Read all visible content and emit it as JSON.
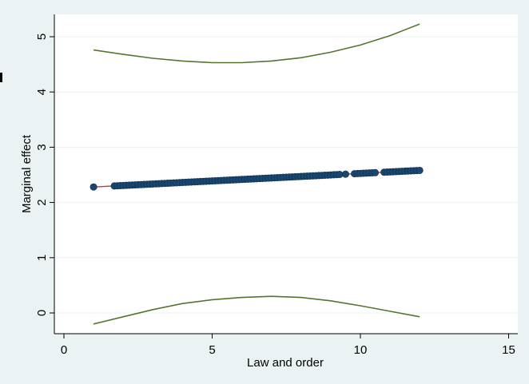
{
  "chart_data": {
    "type": "line",
    "xlabel": "Law and order",
    "ylabel": "Marginal effect",
    "xlim": [
      0,
      15
    ],
    "ylim": [
      0,
      5
    ],
    "x_ticks": [
      0,
      5,
      10,
      15
    ],
    "y_ticks": [
      0,
      1,
      2,
      3,
      4,
      5
    ],
    "x_tick_labels": [
      "0",
      "5",
      "10",
      "15"
    ],
    "y_tick_labels": [
      "0",
      "1",
      "2",
      "3",
      "4",
      "5"
    ],
    "grid": true,
    "legend": false,
    "colors": {
      "background": "#eaf2f3",
      "plot_background": "#ffffff",
      "gridline": "#eaf2f3",
      "estimate_line": "#c0392b",
      "markers": "#1a476f",
      "ci_line": "#55752f"
    },
    "series": [
      {
        "kind": "marginal-effect-line",
        "x": [
          1,
          12
        ],
        "y": [
          2.28,
          2.58
        ]
      },
      {
        "kind": "upper-confidence-bound",
        "x": [
          1,
          2,
          3,
          4,
          5,
          6,
          7,
          8,
          9,
          10,
          11,
          12
        ],
        "y": [
          4.76,
          4.68,
          4.61,
          4.56,
          4.53,
          4.53,
          4.56,
          4.62,
          4.72,
          4.85,
          5.02,
          5.23
        ]
      },
      {
        "kind": "lower-confidence-bound",
        "x": [
          1,
          2,
          3,
          4,
          5,
          6,
          7,
          8,
          9,
          10,
          11,
          12
        ],
        "y": [
          -0.2,
          -0.07,
          0.06,
          0.17,
          0.24,
          0.28,
          0.3,
          0.28,
          0.22,
          0.13,
          0.03,
          -0.07
        ]
      },
      {
        "kind": "observation-markers",
        "x": [
          1.0,
          1.7,
          1.8,
          1.9,
          2.0,
          2.1,
          2.2,
          2.3,
          2.4,
          2.5,
          2.6,
          2.7,
          2.8,
          2.9,
          3.0,
          3.1,
          3.2,
          3.3,
          3.4,
          3.5,
          3.6,
          3.7,
          3.8,
          3.9,
          4.0,
          4.1,
          4.2,
          4.3,
          4.4,
          4.5,
          4.6,
          4.7,
          4.8,
          4.9,
          5.0,
          5.1,
          5.2,
          5.3,
          5.4,
          5.5,
          5.6,
          5.7,
          5.8,
          5.9,
          6.0,
          6.1,
          6.2,
          6.3,
          6.4,
          6.5,
          6.6,
          6.7,
          6.8,
          6.9,
          7.0,
          7.1,
          7.2,
          7.3,
          7.4,
          7.5,
          7.6,
          7.7,
          7.8,
          7.9,
          8.0,
          8.1,
          8.2,
          8.3,
          8.4,
          8.5,
          8.6,
          8.7,
          8.8,
          8.9,
          9.0,
          9.1,
          9.2,
          9.3,
          9.5,
          9.8,
          9.9,
          10.0,
          10.1,
          10.2,
          10.3,
          10.4,
          10.5,
          10.8,
          10.9,
          11.0,
          11.1,
          11.2,
          11.3,
          11.4,
          11.5,
          11.6,
          11.7,
          11.8,
          11.9,
          12.0
        ]
      }
    ]
  }
}
